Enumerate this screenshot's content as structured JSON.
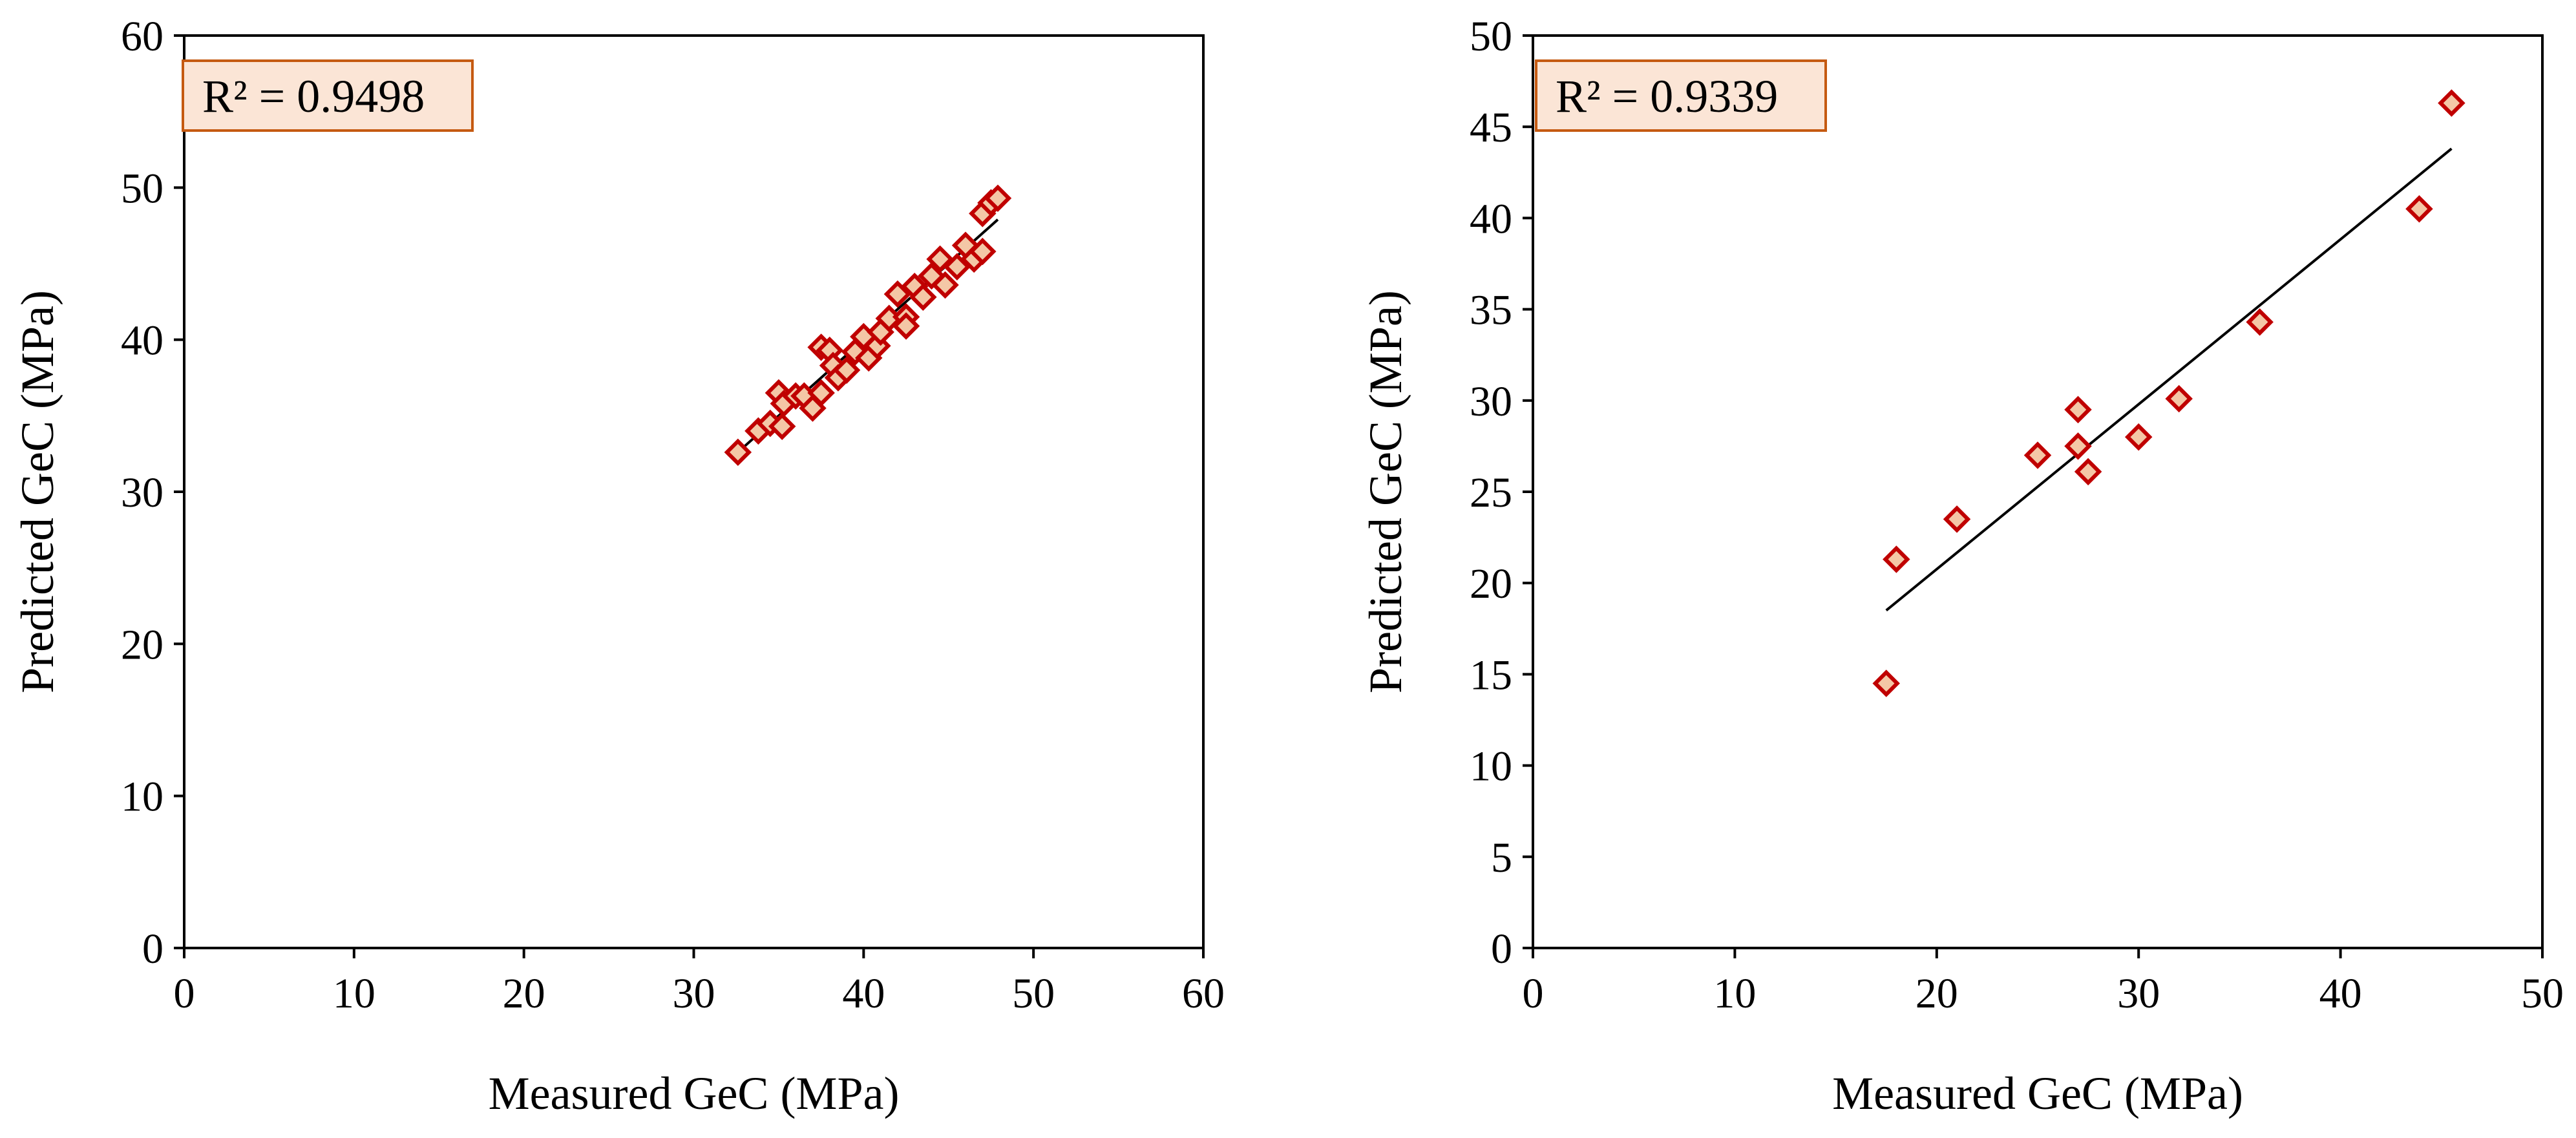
{
  "colors": {
    "marker_fill": "#F4C7A6",
    "marker_stroke": "#C00000",
    "trendline": "#000000",
    "label_box_fill": "#FBE5D6",
    "label_box_stroke": "#C55A11"
  },
  "chart_data": [
    {
      "type": "scatter",
      "xlabel": "Measured GeC (MPa)",
      "ylabel": "Predicted GeC (MPa)",
      "annotation": "R² = 0.9498",
      "xlim": [
        0,
        60
      ],
      "ylim": [
        0,
        60
      ],
      "xticks": [
        "0",
        "10",
        "20",
        "30",
        "40",
        "50",
        "60"
      ],
      "yticks": [
        "0",
        "10",
        "20",
        "30",
        "40",
        "50",
        "60"
      ],
      "grid": false,
      "trendline": {
        "x": [
          32.6,
          47.9
        ],
        "y": [
          32.6,
          47.9
        ]
      },
      "points": [
        [
          32.6,
          32.6
        ],
        [
          33.8,
          34.0
        ],
        [
          34.5,
          34.5
        ],
        [
          35.0,
          36.5
        ],
        [
          35.3,
          35.8
        ],
        [
          35.2,
          34.3
        ],
        [
          36.0,
          36.3
        ],
        [
          36.5,
          36.3
        ],
        [
          37.0,
          35.5
        ],
        [
          37.5,
          36.5
        ],
        [
          37.5,
          39.5
        ],
        [
          38.0,
          39.3
        ],
        [
          38.2,
          38.3
        ],
        [
          38.5,
          37.5
        ],
        [
          39.0,
          38.0
        ],
        [
          39.5,
          39.2
        ],
        [
          40.0,
          40.2
        ],
        [
          40.3,
          38.8
        ],
        [
          40.8,
          39.6
        ],
        [
          41.0,
          40.5
        ],
        [
          41.5,
          41.4
        ],
        [
          42.0,
          43.0
        ],
        [
          42.5,
          41.5
        ],
        [
          42.5,
          40.9
        ],
        [
          43.0,
          43.5
        ],
        [
          43.5,
          42.8
        ],
        [
          44.0,
          44.2
        ],
        [
          44.5,
          45.3
        ],
        [
          44.8,
          43.6
        ],
        [
          45.5,
          44.8
        ],
        [
          46.0,
          46.2
        ],
        [
          46.5,
          45.3
        ],
        [
          47.0,
          45.8
        ],
        [
          47.0,
          48.3
        ],
        [
          47.5,
          49.0
        ],
        [
          47.9,
          49.3
        ]
      ]
    },
    {
      "type": "scatter",
      "xlabel": "Measured GeC (MPa)",
      "ylabel": "Predicted GeC (MPa)",
      "annotation": "R² = 0.9339",
      "xlim": [
        0,
        50
      ],
      "ylim": [
        0,
        50
      ],
      "xticks": [
        "0",
        "10",
        "20",
        "30",
        "40",
        "50"
      ],
      "yticks": [
        "0",
        "5",
        "10",
        "15",
        "20",
        "25",
        "30",
        "35",
        "40",
        "45",
        "50"
      ],
      "grid": false,
      "trendline": {
        "x": [
          17.5,
          45.5
        ],
        "y": [
          18.5,
          43.8
        ]
      },
      "points": [
        [
          17.5,
          14.5
        ],
        [
          18.0,
          21.3
        ],
        [
          21.0,
          23.5
        ],
        [
          25.0,
          27.0
        ],
        [
          27.0,
          29.5
        ],
        [
          27.0,
          27.5
        ],
        [
          27.5,
          26.1
        ],
        [
          30.0,
          28.0
        ],
        [
          32.0,
          30.1
        ],
        [
          36.0,
          34.3
        ],
        [
          43.9,
          40.5
        ],
        [
          45.5,
          46.3
        ]
      ]
    }
  ]
}
